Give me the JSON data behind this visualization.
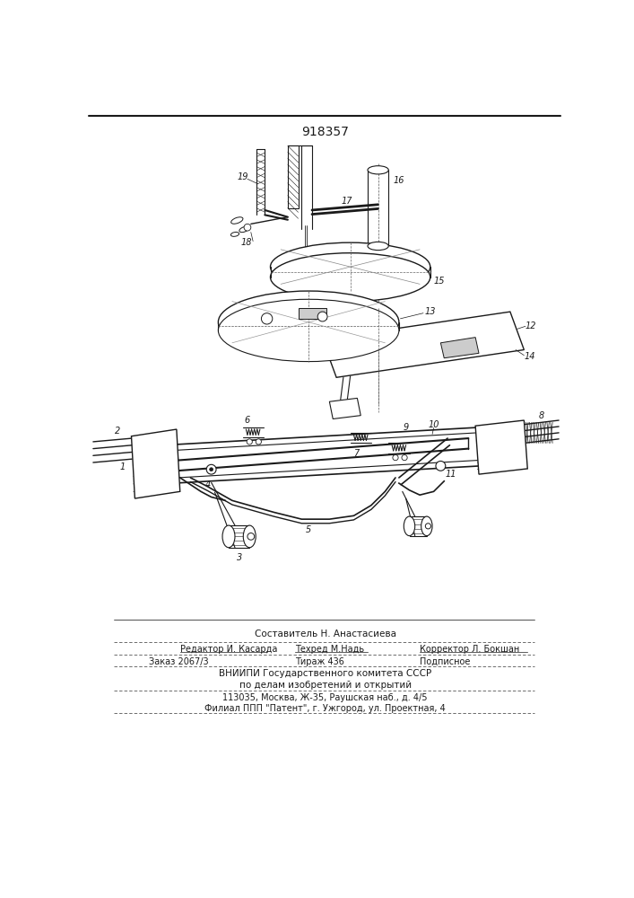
{
  "patent_number": "918357",
  "bg": "#ffffff",
  "lc": "#1a1a1a",
  "footer_lines": [
    "Составитель Н. Анастасиева",
    "Редактор И. Касарда    Техред М.Надь                Корректор Л. Бокшан",
    "Заказ 2067/3                   Тираж 436                              Подписное",
    "ВНИИПИ Государственного комитета СССР",
    "по делам изобретений и открытий",
    "113035, Москва, Ж-35, Раушская наб., д. 4/5",
    "Филиал ППП \"Патент\", г. Ужгород, ул. Проектная, 4"
  ]
}
